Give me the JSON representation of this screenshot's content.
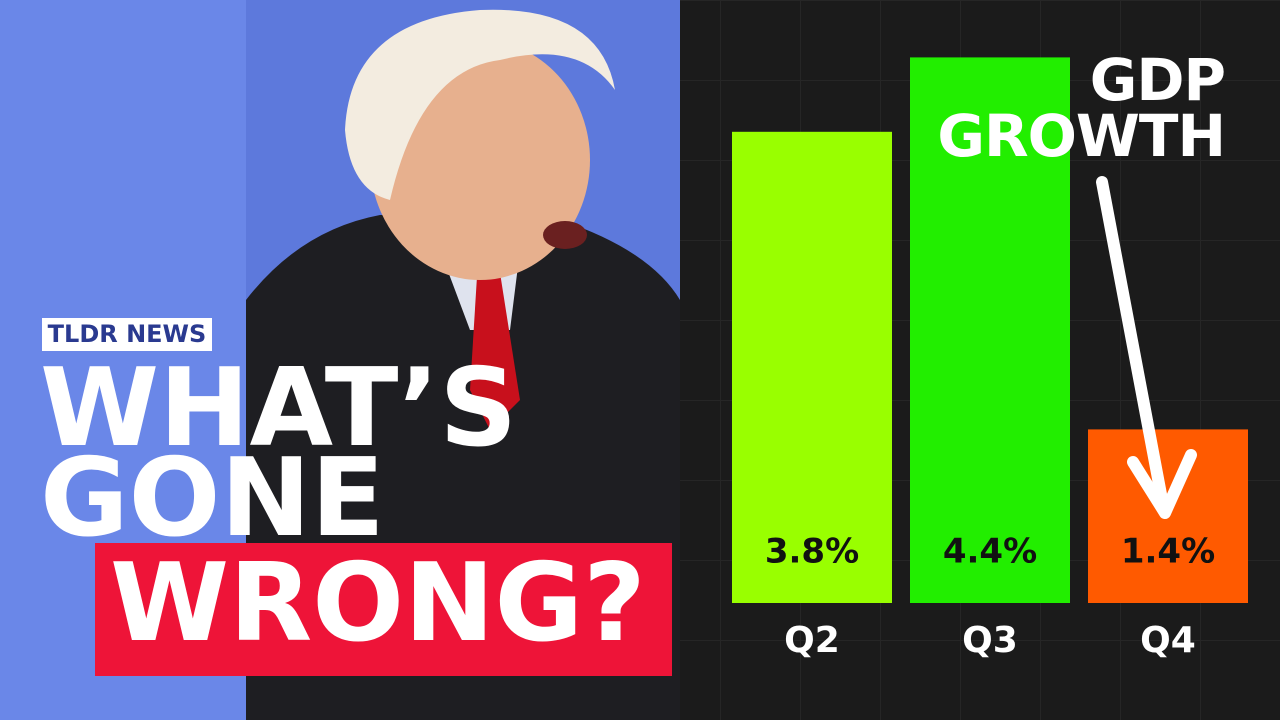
{
  "thumbnail": {
    "badge": "TLDR NEWS",
    "headline": [
      "WHAT’S",
      "GONE",
      "WRONG?"
    ]
  },
  "chart_data": {
    "type": "bar",
    "title": "GDP GROWTH",
    "categories": [
      "Q2",
      "Q3",
      "Q4"
    ],
    "values": [
      3.8,
      4.4,
      1.4
    ],
    "value_labels": [
      "3.8%",
      "4.4%",
      "1.4%"
    ],
    "colors": [
      "#99ff00",
      "#22ee00",
      "#ff5a00"
    ]
  }
}
